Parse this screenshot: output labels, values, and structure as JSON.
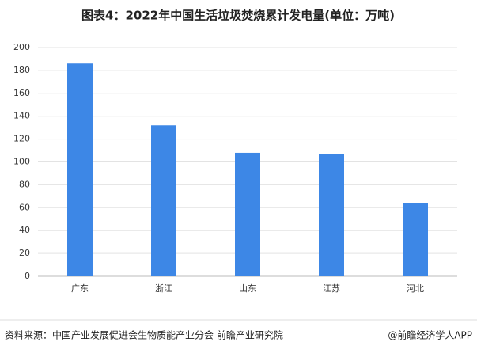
{
  "chart_data": {
    "type": "bar",
    "title": "图表4：2022年中国生活垃圾焚烧累计发电量(单位：万吨)",
    "categories": [
      "广东",
      "浙江",
      "山东",
      "江苏",
      "河北"
    ],
    "values": [
      186,
      132,
      108,
      107,
      64
    ],
    "color": "#3d87e6",
    "ylim": [
      0,
      200
    ],
    "yticks": [
      0,
      20,
      40,
      60,
      80,
      100,
      120,
      140,
      160,
      180,
      200
    ],
    "grid": true
  },
  "footer": {
    "source": "资料来源：中国产业发展促进会生物质能产业分会 前瞻产业研究院",
    "credit": "@前瞻经济学人APP"
  }
}
